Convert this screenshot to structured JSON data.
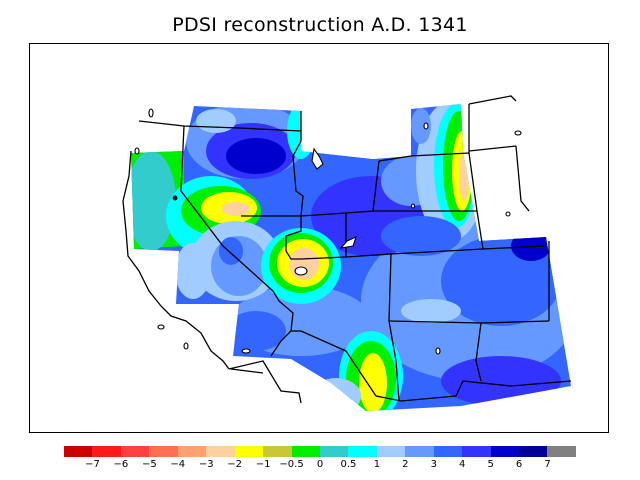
{
  "title": "PDSI reconstruction A.D. 1341",
  "legend": {
    "colors": [
      "#cc0000",
      "#ff1a1a",
      "#ff4040",
      "#ff7050",
      "#ffa070",
      "#ffd0a0",
      "#ffff00",
      "#c8c837",
      "#00ee00",
      "#33cccc",
      "#00ffff",
      "#a0ccff",
      "#6699ff",
      "#3366ff",
      "#3333ff",
      "#0000cc",
      "#000099",
      "#808080"
    ],
    "ticks": [
      "−7",
      "−6",
      "−5",
      "−4",
      "−3",
      "−2",
      "−1",
      "−0.5",
      "0",
      "0.5",
      "1",
      "2",
      "3",
      "4",
      "5",
      "6",
      "7"
    ]
  }
}
